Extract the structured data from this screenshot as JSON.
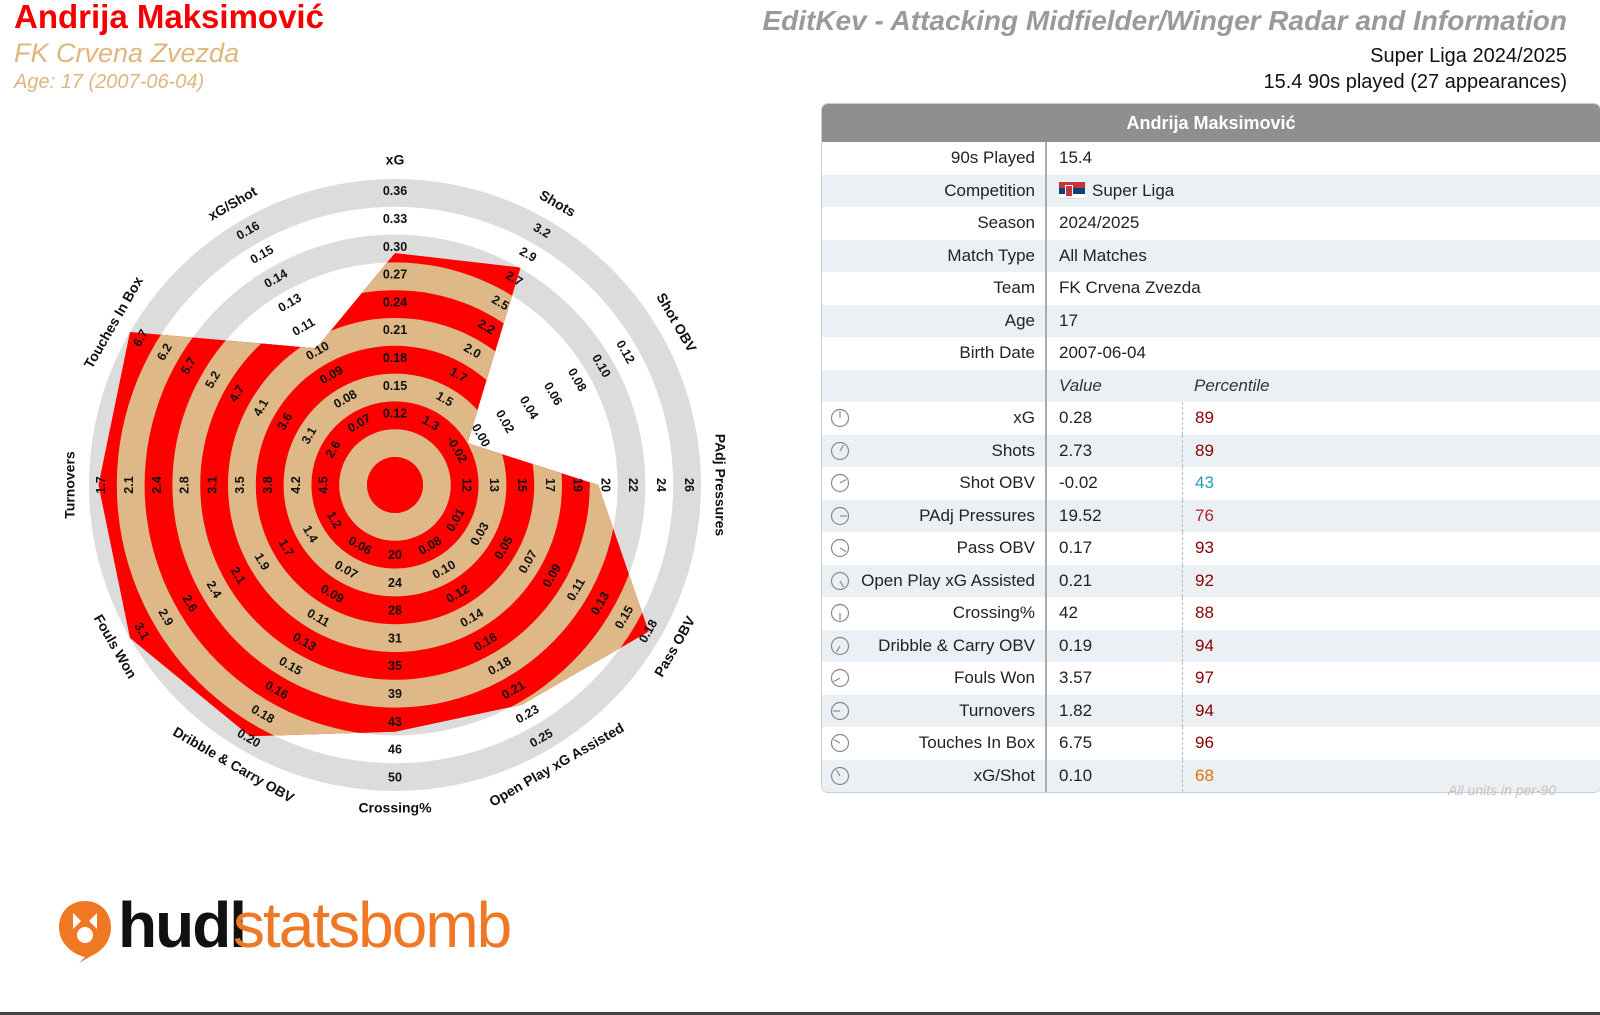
{
  "header": {
    "player_name": "Andrija Maksimović",
    "team_name": "FK Crvena Zvezda",
    "age_line": "Age: 17 (2007-06-04)",
    "report_title": "EditKev - Attacking Midfielder/Winger Radar and Information",
    "season_line": "Super Liga 2024/2025",
    "played_line": "15.4 90s played (27 appearances)"
  },
  "colors": {
    "accent_red": "#ff0000",
    "accent_tan": "#deb887",
    "ring_grey": "#dcdcdc",
    "pct_dark_red": "#8b0000",
    "pct_teal": "#17a2b8",
    "pct_orange": "#e07000"
  },
  "info_table": {
    "title": "Andrija Maksimović",
    "rows": [
      {
        "label": "90s Played",
        "value": "15.4"
      },
      {
        "label": "Competition",
        "value": "Super Liga",
        "flag": "serbia-flag"
      },
      {
        "label": "Season",
        "value": "2024/2025"
      },
      {
        "label": "Match Type",
        "value": "All Matches"
      },
      {
        "label": "Team",
        "value": "FK Crvena Zvezda"
      },
      {
        "label": "Age",
        "value": "17"
      },
      {
        "label": "Birth Date",
        "value": "2007-06-04"
      }
    ],
    "value_header": "Value",
    "percentile_header": "Percentile",
    "metrics": [
      {
        "label": "xG",
        "value": "0.28",
        "percentile": "89",
        "pct_color": "#8b0000"
      },
      {
        "label": "Shots",
        "value": "2.73",
        "percentile": "89",
        "pct_color": "#8b0000"
      },
      {
        "label": "Shot OBV",
        "value": "-0.02",
        "percentile": "43",
        "pct_color": "#17a2b8"
      },
      {
        "label": "PAdj Pressures",
        "value": "19.52",
        "percentile": "76",
        "pct_color": "#b22222"
      },
      {
        "label": "Pass OBV",
        "value": "0.17",
        "percentile": "93",
        "pct_color": "#8b0000"
      },
      {
        "label": "Open Play xG Assisted",
        "value": "0.21",
        "percentile": "92",
        "pct_color": "#8b0000"
      },
      {
        "label": "Crossing%",
        "value": "42",
        "percentile": "88",
        "pct_color": "#8b0000"
      },
      {
        "label": "Dribble & Carry OBV",
        "value": "0.19",
        "percentile": "94",
        "pct_color": "#8b0000"
      },
      {
        "label": "Fouls Won",
        "value": "3.57",
        "percentile": "97",
        "pct_color": "#8b0000"
      },
      {
        "label": "Turnovers",
        "value": "1.82",
        "percentile": "94",
        "pct_color": "#8b0000"
      },
      {
        "label": "Touches In Box",
        "value": "6.75",
        "percentile": "96",
        "pct_color": "#8b0000"
      },
      {
        "label": "xG/Shot",
        "value": "0.10",
        "percentile": "68",
        "pct_color": "#e07000"
      }
    ],
    "units_note": "All units in per-90"
  },
  "logo": {
    "part1": "hudl",
    "part2": "statsbomb"
  },
  "chart_data": {
    "type": "radar",
    "title": "",
    "axes": [
      {
        "name": "xG",
        "ticks": [
          "0.12",
          "0.15",
          "0.18",
          "0.21",
          "0.24",
          "0.27",
          "0.30",
          "0.33",
          "0.36"
        ],
        "value": 0.28
      },
      {
        "name": "Shots",
        "ticks": [
          "1.3",
          "1.5",
          "1.7",
          "2.0",
          "2.2",
          "2.5",
          "2.7",
          "2.9",
          "3.2"
        ],
        "value": 2.73
      },
      {
        "name": "Shot OBV",
        "ticks": [
          "-0.02",
          "0.00",
          "0.02",
          "0.04",
          "0.06",
          "0.08",
          "0.10",
          "0.12"
        ],
        "value": -0.02
      },
      {
        "name": "PAdj Pressures",
        "ticks": [
          "12",
          "13",
          "15",
          "17",
          "19",
          "20",
          "22",
          "24",
          "26"
        ],
        "value": 19.52
      },
      {
        "name": "Pass OBV",
        "ticks": [
          "0.01",
          "0.03",
          "0.05",
          "0.07",
          "0.09",
          "0.11",
          "0.13",
          "0.15",
          "0.18"
        ],
        "value": 0.17
      },
      {
        "name": "Open Play xG Assisted",
        "ticks": [
          "0.08",
          "0.10",
          "0.12",
          "0.14",
          "0.16",
          "0.18",
          "0.21",
          "0.23",
          "0.25"
        ],
        "value": 0.21
      },
      {
        "name": "Crossing%",
        "ticks": [
          "20",
          "24",
          "28",
          "31",
          "35",
          "39",
          "43",
          "46",
          "50"
        ],
        "value": 42
      },
      {
        "name": "Dribble & Carry OBV",
        "ticks": [
          "0.06",
          "0.07",
          "0.09",
          "0.11",
          "0.13",
          "0.15",
          "0.16",
          "0.18",
          "0.20"
        ],
        "value": 0.19
      },
      {
        "name": "Fouls Won",
        "ticks": [
          "1.2",
          "1.4",
          "1.7",
          "1.9",
          "2.1",
          "2.4",
          "2.6",
          "2.9",
          "3.1"
        ],
        "value": 3.57
      },
      {
        "name": "Turnovers",
        "ticks": [
          "4.5",
          "4.2",
          "3.8",
          "3.5",
          "3.1",
          "2.8",
          "2.4",
          "2.1",
          "1.7"
        ],
        "value": 1.82
      },
      {
        "name": "Touches In Box",
        "ticks": [
          "2.6",
          "3.1",
          "3.6",
          "4.1",
          "4.7",
          "5.2",
          "5.7",
          "6.2",
          "6.7"
        ],
        "value": 6.75
      },
      {
        "name": "xG/Shot",
        "ticks": [
          "0.07",
          "0.08",
          "0.09",
          "0.10",
          "0.11",
          "0.13",
          "0.14",
          "0.15",
          "0.16"
        ],
        "value": 0.1
      }
    ]
  }
}
